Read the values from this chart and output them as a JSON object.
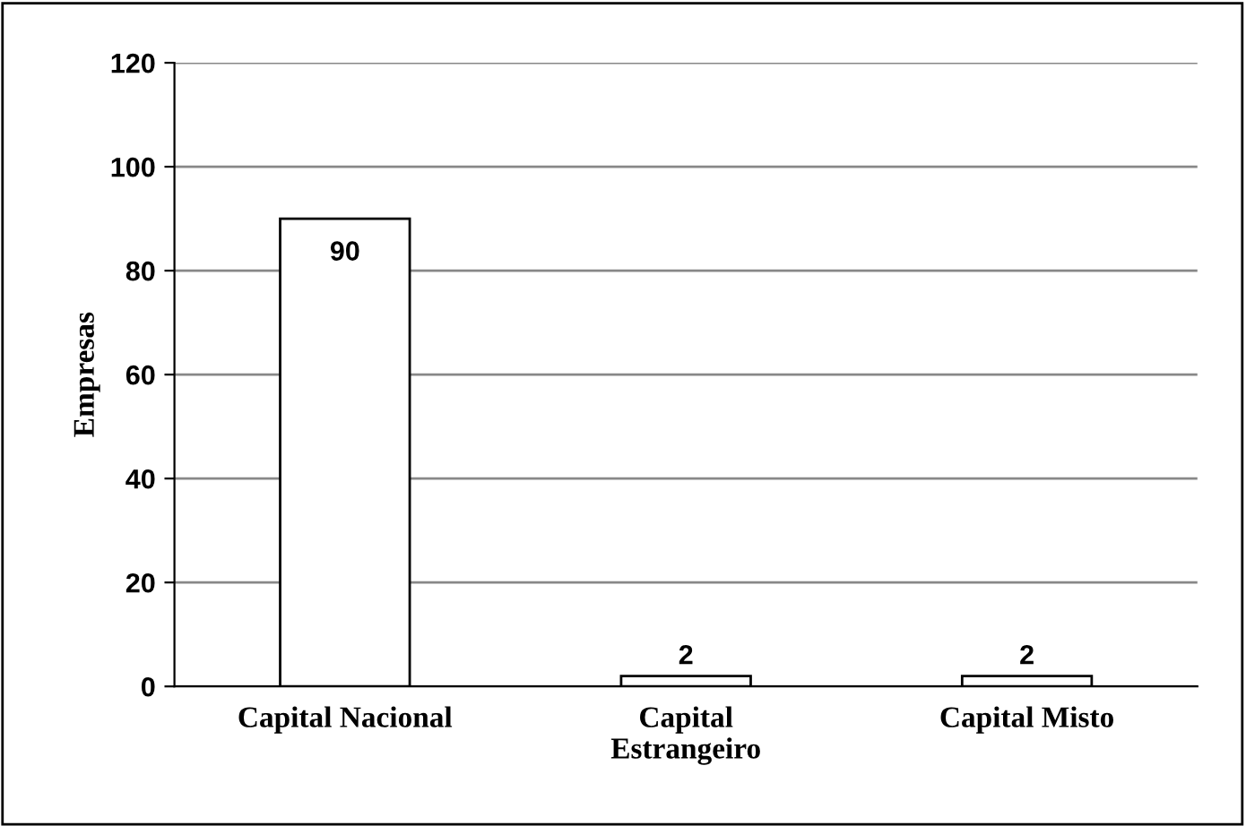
{
  "chart_data": {
    "type": "bar",
    "ylabel": "Empresas",
    "categories": [
      "Capital Nacional",
      "Capital\nEstrangeiro",
      "Capital Misto"
    ],
    "values": [
      90,
      2,
      2
    ],
    "color": "#ffffff",
    "ylim": [
      0,
      120
    ],
    "yticks": [
      0,
      20,
      40,
      60,
      80,
      100,
      120
    ],
    "grid": "y",
    "data_labels": true
  }
}
